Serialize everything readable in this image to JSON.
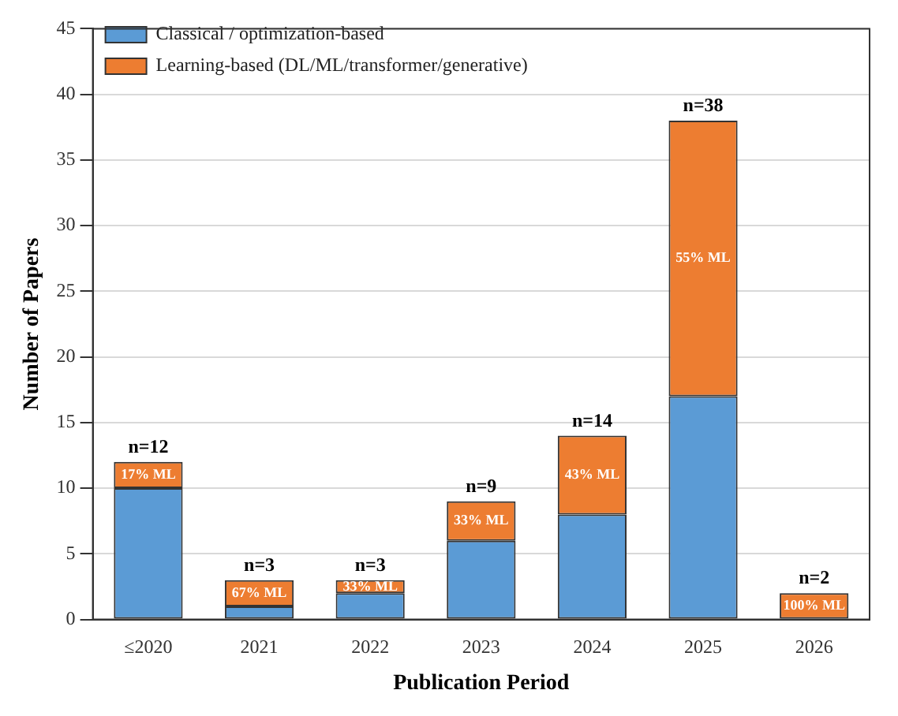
{
  "chart_data": {
    "type": "bar",
    "stacked": true,
    "xlabel": "Publication Period",
    "ylabel": "Number of Papers",
    "categories": [
      "≤2020",
      "2021",
      "2022",
      "2023",
      "2024",
      "2025",
      "2026"
    ],
    "series": [
      {
        "name": "Classical / optimization-based",
        "color": "#5b9bd5",
        "values": [
          10,
          1,
          2,
          6,
          8,
          17,
          0
        ]
      },
      {
        "name": "Learning-based (DL/ML/transformer/generative)",
        "color": "#ed7d31",
        "values": [
          2,
          2,
          1,
          3,
          6,
          21,
          2
        ]
      }
    ],
    "annotations": [
      "17% ML",
      "67% ML",
      "33% ML",
      "33% ML",
      "43% ML",
      "55% ML",
      "100% ML"
    ],
    "totals": [
      "n=12",
      "n=3",
      "n=3",
      "n=9",
      "n=14",
      "n=38",
      "n=2"
    ],
    "ylim": [
      0,
      45
    ],
    "yticks": [
      0,
      5,
      10,
      15,
      20,
      25,
      30,
      35,
      40,
      45
    ],
    "grid": "y",
    "legend": "top left"
  }
}
